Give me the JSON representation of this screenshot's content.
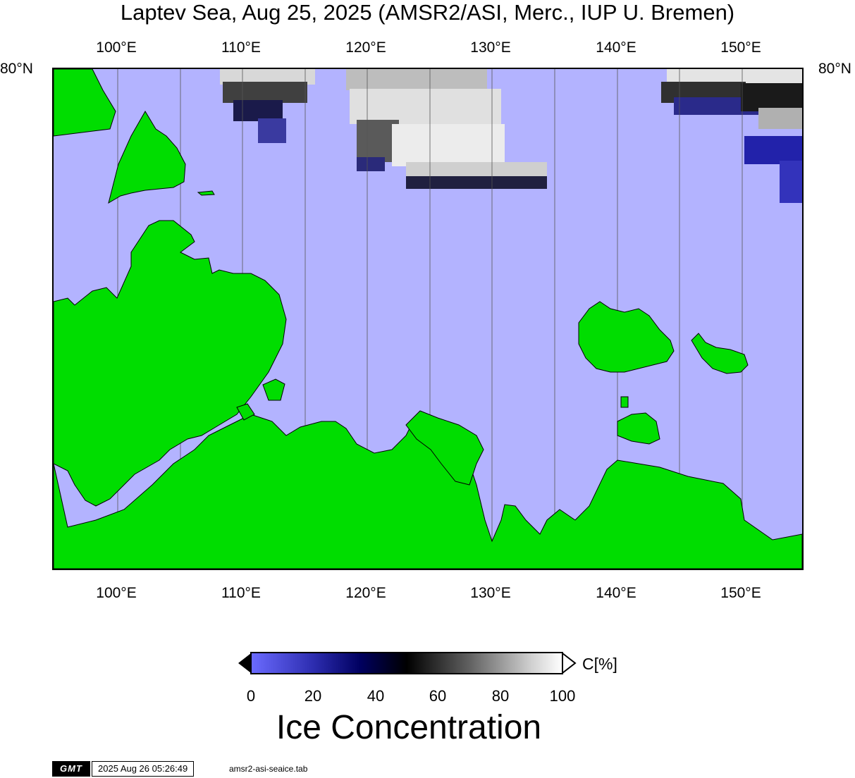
{
  "title": "Laptev Sea, Aug 25, 2025 (AMSR2/ASI, Merc., IUP U. Bremen)",
  "map": {
    "lon_ticks": [
      "100°E",
      "110°E",
      "120°E",
      "130°E",
      "140°E",
      "150°E"
    ],
    "lat_label_left": "80°N",
    "lat_label_right": "80°N",
    "colors": {
      "ocean": "#b3b3ff",
      "land": "#00dd00",
      "coast": "#000000",
      "ice_low": "#6b6bff",
      "ice_mid": "#000000",
      "ice_high": "#ffffff"
    }
  },
  "colorbar": {
    "ticks": [
      "0",
      "20",
      "40",
      "60",
      "80",
      "100"
    ],
    "unit": "C[%]",
    "label": "Ice Concentration"
  },
  "footer": {
    "logo": "GMT",
    "timestamp": "2025 Aug 26 05:26:49",
    "file": "amsr2-asi-seaice.tab"
  }
}
